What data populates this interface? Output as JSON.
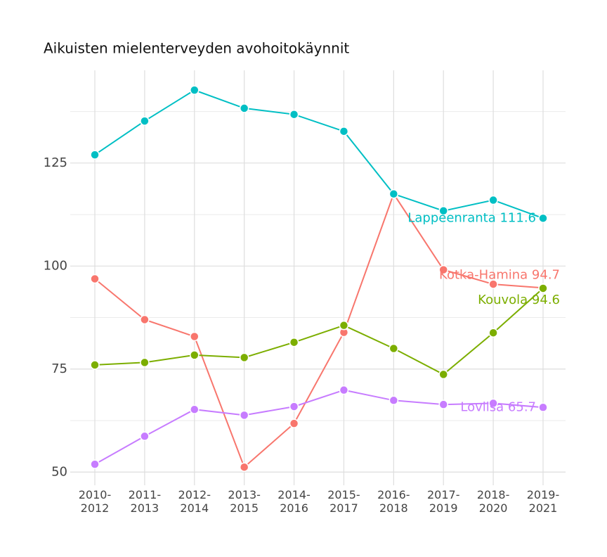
{
  "chart_data": {
    "type": "line",
    "title": "Aikuisten mielenterveyden avohoitokäynnit",
    "categories": [
      "2010-\n2012",
      "2011-\n2013",
      "2012-\n2014",
      "2013-\n2015",
      "2014-\n2016",
      "2015-\n2017",
      "2016-\n2018",
      "2017-\n2019",
      "2018-\n2020",
      "2019-\n2021"
    ],
    "ylim": [
      46.8,
      147.5
    ],
    "yticks": [
      50,
      75,
      100,
      125
    ],
    "minor_yticks": [
      62.5,
      87.5,
      112.5,
      137.5
    ],
    "grid": true,
    "series": [
      {
        "name": "Kotka-Hamina",
        "color": "#F8766D",
        "label": "Kotka-Hamina 94.7",
        "values": [
          96.9,
          87.0,
          82.9,
          51.2,
          61.8,
          83.9,
          117.5,
          99.1,
          95.6,
          94.7
        ]
      },
      {
        "name": "Kouvola",
        "color": "#7CAE00",
        "label": "Kouvola 94.6",
        "values": [
          76.0,
          76.6,
          78.4,
          77.8,
          81.5,
          85.6,
          80.0,
          73.7,
          83.8,
          94.6
        ]
      },
      {
        "name": "Lappeenranta",
        "color": "#00BFC4",
        "label": "Lappeenranta 111.6",
        "values": [
          127.0,
          135.2,
          142.7,
          138.3,
          136.8,
          132.7,
          117.5,
          113.4,
          116.0,
          111.6
        ]
      },
      {
        "name": "Loviisa",
        "color": "#C77CFF",
        "label": "Loviisa 65.7",
        "values": [
          51.9,
          58.7,
          65.2,
          63.8,
          65.9,
          69.9,
          67.4,
          66.4,
          66.7,
          65.7
        ]
      }
    ]
  }
}
